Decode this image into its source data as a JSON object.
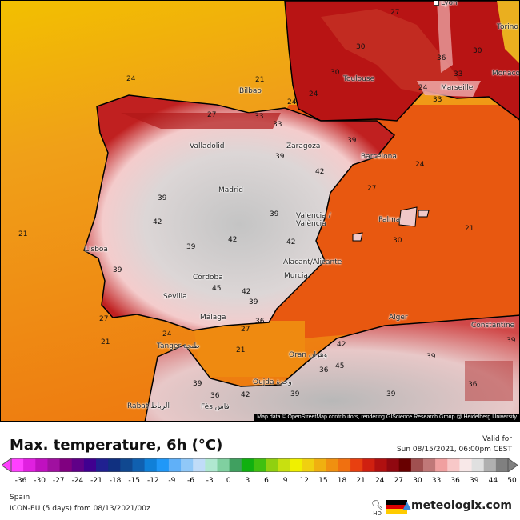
{
  "map": {
    "cities": [
      "Lyon",
      "Torino",
      "Toulouse",
      "Monaco",
      "Marseille",
      "Bilbao",
      "Valladolid",
      "Zaragoza",
      "Barcelona",
      "Madrid",
      "Valencia / València",
      "Palma",
      "Lisboa",
      "Córdoba",
      "Sevilla",
      "Alacant/Alicante",
      "Murcia",
      "Málaga",
      "Tanger طنجة",
      "Oran وهران",
      "Alger",
      "Constantine",
      "Oujda وجدة",
      "Rabat الرباط",
      "Fès فاس"
    ],
    "temperature_labels": [
      "27",
      "30",
      "30",
      "36",
      "33",
      "33",
      "24",
      "30",
      "24",
      "21",
      "24",
      "24",
      "27",
      "21",
      "33",
      "39",
      "39",
      "39",
      "42",
      "42",
      "39",
      "39",
      "42",
      "42",
      "39",
      "45",
      "42",
      "39",
      "33",
      "27",
      "21",
      "21",
      "24",
      "27",
      "21",
      "27",
      "24",
      "36",
      "30",
      "42",
      "36",
      "39",
      "36",
      "39",
      "42",
      "45",
      "39",
      "39",
      "39",
      "36"
    ],
    "attribution": "Map data © OpenStreetMap contributors, rendering GIScience Research Group @ Heidelberg University",
    "colors": {
      "sea_med": "#e85810",
      "sea_atlantic": "#f0a020",
      "land_hot": "#f2caca",
      "land_hottest": "#c8c8c8",
      "france": "#b81414"
    }
  },
  "legend": {
    "title": "Max. temperature, 6h (°C)",
    "valid_label": "Valid for",
    "valid_time": "Sun 08/15/2021, 06:00pm CEST",
    "ticks": [
      "-36",
      "-30",
      "-27",
      "-24",
      "-21",
      "-18",
      "-15",
      "-12",
      "-9",
      "-6",
      "-3",
      "0",
      "3",
      "6",
      "9",
      "12",
      "15",
      "18",
      "21",
      "24",
      "27",
      "30",
      "33",
      "36",
      "39",
      "44",
      "50"
    ],
    "colors": [
      "#ff40ff",
      "#e020e0",
      "#c010c0",
      "#a010a0",
      "#800080",
      "#600088",
      "#400090",
      "#202090",
      "#103080",
      "#104890",
      "#1060b0",
      "#1080d8",
      "#2098f8",
      "#60b0f8",
      "#90c8f8",
      "#c0dcf8",
      "#b0e8d0",
      "#80d0a0",
      "#40a060",
      "#10b010",
      "#40c010",
      "#90d010",
      "#c8e010",
      "#f0f000",
      "#f0d010",
      "#f0b010",
      "#f09010",
      "#f07010",
      "#e84010",
      "#d02010",
      "#b01010",
      "#900810",
      "#680000",
      "#a05050",
      "#c07878",
      "#f0a0a0",
      "#f8c8c8",
      "#f8e8e8",
      "#e0e0e0",
      "#b0b0b0",
      "#808080"
    ],
    "region": "Spain",
    "model": "ICON-EU (5 days) from 08/13/2021/00z",
    "hd_label": "HD",
    "brand": "meteologix.com"
  }
}
